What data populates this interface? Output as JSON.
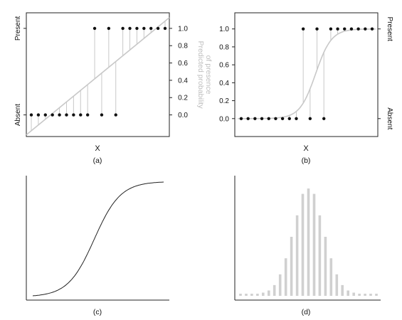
{
  "chart_data": [
    {
      "id": "a",
      "type": "scatter",
      "caption": "(a)",
      "xlabel": "X",
      "left_ticklabels": [
        "Absent",
        "Present"
      ],
      "right_axis_label": [
        "Predicted probability",
        "of presence"
      ],
      "right_ticks": [
        0.0,
        0.2,
        0.4,
        0.6,
        0.8,
        1.0
      ],
      "right_ticklabels": [
        "0.0",
        "0.2",
        "0.4",
        "0.6",
        "0.8",
        "1.0"
      ],
      "ylim": [
        -0.25,
        1.18
      ],
      "xlim": [
        0,
        20
      ],
      "x": [
        1,
        2,
        3,
        4,
        5,
        6,
        7,
        8,
        9,
        10,
        11,
        12,
        13,
        14,
        15,
        16,
        17,
        18,
        19,
        20
      ],
      "presence": [
        0,
        0,
        0,
        0,
        0,
        0,
        0,
        0,
        0,
        1,
        0,
        1,
        0,
        1,
        1,
        1,
        1,
        1,
        1,
        1
      ],
      "fitted": {
        "model": "linear",
        "intercept": -0.25,
        "slope": 0.0667
      },
      "colors": {
        "points": "#111111",
        "fit": "#c8c8c8",
        "residuals": "#c8c8c8"
      }
    },
    {
      "id": "b",
      "type": "scatter",
      "caption": "(b)",
      "xlabel": "X",
      "left_ticks": [
        0.0,
        0.2,
        0.4,
        0.6,
        0.8,
        1.0
      ],
      "left_ticklabels": [
        "0.0",
        "0.2",
        "0.4",
        "0.6",
        "0.8",
        "1.0"
      ],
      "right_ticklabels": [
        "Absent",
        "Present"
      ],
      "ylim": [
        -0.2,
        1.18
      ],
      "xlim": [
        0,
        20
      ],
      "x": [
        1,
        2,
        3,
        4,
        5,
        6,
        7,
        8,
        9,
        10,
        11,
        12,
        13,
        14,
        15,
        16,
        17,
        18,
        19,
        20
      ],
      "presence": [
        0,
        0,
        0,
        0,
        0,
        0,
        0,
        0,
        0,
        1,
        0,
        1,
        0,
        1,
        1,
        1,
        1,
        1,
        1,
        1
      ],
      "fitted": {
        "model": "logistic",
        "midpoint": 11.8,
        "scale": 1.15
      },
      "colors": {
        "points": "#111111",
        "fit": "#c8c8c8",
        "residuals": "#c8c8c8"
      }
    },
    {
      "id": "c",
      "type": "line",
      "caption": "(c)",
      "curve": {
        "model": "logistic",
        "midpoint": 0.47,
        "scale": 0.1,
        "x_range": [
          0,
          1
        ]
      },
      "colors": {
        "line": "#222222"
      }
    },
    {
      "id": "d",
      "type": "bar",
      "caption": "(d)",
      "values": [
        0.02,
        0.02,
        0.02,
        0.02,
        0.03,
        0.05,
        0.1,
        0.2,
        0.35,
        0.55,
        0.75,
        0.95,
        1.0,
        0.95,
        0.75,
        0.55,
        0.35,
        0.2,
        0.1,
        0.05,
        0.03,
        0.02,
        0.02,
        0.02,
        0.02
      ],
      "ylim": [
        0,
        1.1
      ],
      "colors": {
        "bars": "#d0d0d0"
      }
    }
  ]
}
